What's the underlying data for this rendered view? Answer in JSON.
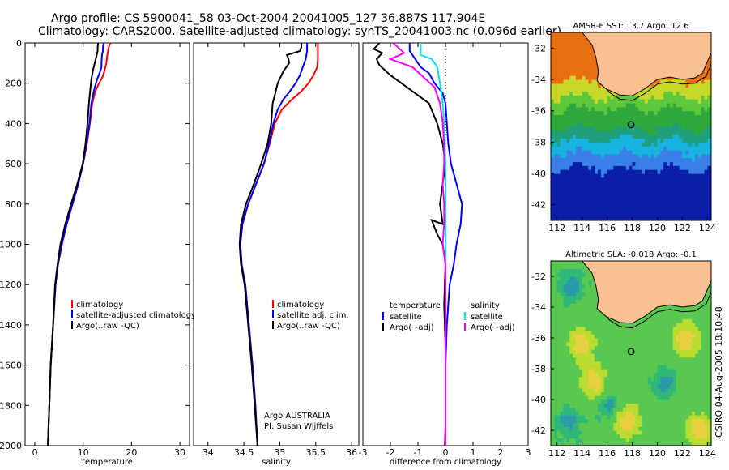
{
  "header": {
    "title_line1": "Argo profile: CS 5900041_58 03-Oct-2004 20041005_127 36.887S 117.904E",
    "title_line2": "Climatology: CARS2000. Satellite-adjusted climatology: synTS_20041003.nc (0.096d earlier)"
  },
  "side_label": "CSIRO 04-Aug-2005 18:10:48",
  "annotations": {
    "argo_agency": "Argo AUSTRALIA",
    "pi": "PI: Susan Wijffels"
  },
  "colors": {
    "climatology": "#ff0000",
    "satellite": "#0000ff",
    "argo": "#000000",
    "salinity_sat": "#00e5ee",
    "salinity_argo": "#ff00ff",
    "land": "#f9c192"
  },
  "chart_data": [
    {
      "type": "line",
      "title": "",
      "xlabel": "temperature",
      "ylabel": "",
      "xlim": [
        -2,
        32
      ],
      "ylim": [
        2000,
        0
      ],
      "xticks": [
        0,
        10,
        20,
        30
      ],
      "yticks": [
        0,
        200,
        400,
        600,
        800,
        1000,
        1200,
        1400,
        1600,
        1800,
        2000
      ],
      "legend": {
        "position": "bottom-right",
        "entries": [
          "climatology",
          "satellite-adjusted climatology",
          "Argo(..raw -QC)"
        ]
      },
      "series": [
        {
          "name": "climatology",
          "color": "#ff0000",
          "points": [
            [
              15.6,
              0
            ],
            [
              15.3,
              20
            ],
            [
              15.0,
              60
            ],
            [
              14.8,
              100
            ],
            [
              14.4,
              140
            ],
            [
              14.0,
              170
            ],
            [
              13.3,
              200
            ],
            [
              12.5,
              240
            ],
            [
              11.9,
              300
            ],
            [
              11.4,
              400
            ],
            [
              10.8,
              500
            ],
            [
              10.0,
              600
            ],
            [
              9.0,
              700
            ],
            [
              7.8,
              800
            ],
            [
              6.6,
              900
            ],
            [
              5.6,
              1000
            ],
            [
              4.8,
              1100
            ],
            [
              4.3,
              1200
            ],
            [
              3.8,
              1400
            ],
            [
              3.3,
              1600
            ],
            [
              3.0,
              1800
            ],
            [
              2.7,
              2000
            ]
          ]
        },
        {
          "name": "satellite",
          "color": "#0000ff",
          "points": [
            [
              14.3,
              0
            ],
            [
              14.1,
              20
            ],
            [
              14.1,
              40
            ],
            [
              13.9,
              60
            ],
            [
              13.8,
              100
            ],
            [
              13.8,
              120
            ],
            [
              13.4,
              150
            ],
            [
              12.9,
              180
            ],
            [
              12.4,
              220
            ],
            [
              12.0,
              260
            ],
            [
              11.7,
              300
            ],
            [
              11.3,
              400
            ],
            [
              10.7,
              500
            ],
            [
              10.0,
              600
            ],
            [
              9.0,
              700
            ],
            [
              7.8,
              800
            ],
            [
              6.6,
              900
            ],
            [
              5.6,
              1000
            ],
            [
              4.8,
              1100
            ],
            [
              4.3,
              1200
            ],
            [
              3.8,
              1400
            ],
            [
              3.3,
              1600
            ],
            [
              3.0,
              1800
            ],
            [
              2.7,
              2000
            ]
          ]
        },
        {
          "name": "Argo",
          "color": "#000000",
          "points": [
            [
              13.1,
              0
            ],
            [
              13.0,
              20
            ],
            [
              13.0,
              40
            ],
            [
              12.8,
              60
            ],
            [
              12.6,
              80
            ],
            [
              12.4,
              100
            ],
            [
              12.0,
              140
            ],
            [
              11.7,
              180
            ],
            [
              11.4,
              250
            ],
            [
              11.2,
              300
            ],
            [
              10.9,
              400
            ],
            [
              10.5,
              500
            ],
            [
              9.9,
              600
            ],
            [
              8.8,
              700
            ],
            [
              7.5,
              800
            ],
            [
              6.3,
              900
            ],
            [
              5.3,
              1000
            ],
            [
              4.7,
              1100
            ],
            [
              4.2,
              1200
            ],
            [
              3.8,
              1400
            ],
            [
              3.3,
              1600
            ],
            [
              3.0,
              1800
            ],
            [
              2.7,
              2000
            ]
          ]
        }
      ]
    },
    {
      "type": "line",
      "title": "",
      "xlabel": "salinity",
      "ylabel": "",
      "xlim": [
        33.8,
        36.1
      ],
      "ylim": [
        2000,
        0
      ],
      "xticks": [
        34,
        34.5,
        35,
        35.5,
        36
      ],
      "yticks": [],
      "legend": {
        "position": "bottom-right",
        "entries": [
          "climatology",
          "satellite adj. clim.",
          "Argo(..raw -QC)"
        ]
      },
      "series": [
        {
          "name": "climatology",
          "color": "#ff0000",
          "points": [
            [
              35.53,
              0
            ],
            [
              35.53,
              80
            ],
            [
              35.52,
              120
            ],
            [
              35.47,
              160
            ],
            [
              35.4,
              200
            ],
            [
              35.3,
              240
            ],
            [
              35.17,
              280
            ],
            [
              35.03,
              330
            ],
            [
              34.93,
              400
            ],
            [
              34.86,
              500
            ],
            [
              34.78,
              600
            ],
            [
              34.67,
              700
            ],
            [
              34.56,
              800
            ],
            [
              34.48,
              900
            ],
            [
              34.45,
              1000
            ],
            [
              34.47,
              1100
            ],
            [
              34.52,
              1200
            ],
            [
              34.57,
              1400
            ],
            [
              34.62,
              1600
            ],
            [
              34.66,
              1800
            ],
            [
              34.69,
              2000
            ]
          ]
        },
        {
          "name": "satellite",
          "color": "#0000ff",
          "points": [
            [
              35.38,
              0
            ],
            [
              35.38,
              40
            ],
            [
              35.36,
              80
            ],
            [
              35.32,
              120
            ],
            [
              35.28,
              160
            ],
            [
              35.22,
              200
            ],
            [
              35.14,
              240
            ],
            [
              35.05,
              280
            ],
            [
              34.97,
              330
            ],
            [
              34.91,
              400
            ],
            [
              34.85,
              500
            ],
            [
              34.78,
              600
            ],
            [
              34.67,
              700
            ],
            [
              34.56,
              800
            ],
            [
              34.48,
              900
            ],
            [
              34.45,
              1000
            ],
            [
              34.47,
              1100
            ],
            [
              34.52,
              1200
            ],
            [
              34.57,
              1400
            ],
            [
              34.62,
              1600
            ],
            [
              34.66,
              1800
            ],
            [
              34.69,
              2000
            ]
          ]
        },
        {
          "name": "Argo",
          "color": "#000000",
          "points": [
            [
              35.3,
              0
            ],
            [
              35.3,
              20
            ],
            [
              35.28,
              40
            ],
            [
              35.1,
              60
            ],
            [
              35.12,
              80
            ],
            [
              35.13,
              100
            ],
            [
              35.05,
              140
            ],
            [
              34.97,
              200
            ],
            [
              34.93,
              260
            ],
            [
              34.9,
              300
            ],
            [
              34.88,
              400
            ],
            [
              34.83,
              500
            ],
            [
              34.74,
              600
            ],
            [
              34.64,
              700
            ],
            [
              34.53,
              800
            ],
            [
              34.46,
              900
            ],
            [
              34.44,
              1000
            ],
            [
              34.46,
              1100
            ],
            [
              34.51,
              1200
            ],
            [
              34.56,
              1400
            ],
            [
              34.61,
              1600
            ],
            [
              34.65,
              1800
            ],
            [
              34.69,
              2000
            ]
          ]
        }
      ]
    },
    {
      "type": "line",
      "title": "",
      "xlabel": "difference from climatology",
      "ylabel": "",
      "xlim": [
        -3,
        3
      ],
      "ylim": [
        2000,
        0
      ],
      "xticks": [
        -3,
        -2,
        -1,
        0,
        1,
        2,
        3
      ],
      "yticks": [],
      "legend": {
        "position": "bottom",
        "left_heading": "temperature",
        "left_entries": [
          "satellite",
          "Argo(~adj)"
        ],
        "right_heading": "salinity",
        "right_entries": [
          "satellite",
          "Argo(~adj)"
        ]
      },
      "series": [
        {
          "name": "temperature satellite",
          "color": "#0000ff",
          "points": [
            [
              -1.3,
              0
            ],
            [
              -1.3,
              40
            ],
            [
              -1.0,
              100
            ],
            [
              -0.9,
              120
            ],
            [
              -0.6,
              150
            ],
            [
              -0.4,
              200
            ],
            [
              -0.1,
              250
            ],
            [
              0,
              300
            ],
            [
              0.05,
              400
            ],
            [
              0.1,
              500
            ],
            [
              0.2,
              600
            ],
            [
              0.4,
              700
            ],
            [
              0.6,
              800
            ],
            [
              0.55,
              900
            ],
            [
              0.4,
              1000
            ],
            [
              0.3,
              1100
            ],
            [
              0.15,
              1200
            ],
            [
              0.05,
              1400
            ],
            [
              0,
              1600
            ],
            [
              0,
              1800
            ],
            [
              0,
              2000
            ]
          ]
        },
        {
          "name": "temperature Argo",
          "color": "#000000",
          "points": [
            [
              -2.4,
              0
            ],
            [
              -2.6,
              30
            ],
            [
              -2.3,
              50
            ],
            [
              -2.5,
              80
            ],
            [
              -2.4,
              110
            ],
            [
              -2.0,
              160
            ],
            [
              -1.6,
              200
            ],
            [
              -0.6,
              300
            ],
            [
              -0.3,
              400
            ],
            [
              -0.1,
              500
            ],
            [
              0,
              600
            ],
            [
              -0.1,
              700
            ],
            [
              -0.2,
              800
            ],
            [
              -0.1,
              900
            ],
            [
              -0.5,
              880
            ],
            [
              -0.3,
              950
            ],
            [
              -0.1,
              1000
            ],
            [
              0,
              1100
            ],
            [
              -0.05,
              1300
            ],
            [
              0,
              1500
            ],
            [
              0,
              1700
            ],
            [
              0,
              1900
            ],
            [
              -0.02,
              2000
            ]
          ]
        },
        {
          "name": "salinity satellite",
          "color": "#00e5ee",
          "points": [
            [
              -0.9,
              0
            ],
            [
              -0.9,
              60
            ],
            [
              -0.5,
              80
            ],
            [
              -0.3,
              120
            ],
            [
              -0.2,
              200
            ],
            [
              -0.1,
              300
            ],
            [
              -0.05,
              400
            ],
            [
              0,
              600
            ],
            [
              0,
              800
            ],
            [
              0,
              1000
            ],
            [
              0,
              1500
            ],
            [
              0,
              2000
            ]
          ]
        },
        {
          "name": "salinity Argo",
          "color": "#ff00ff",
          "points": [
            [
              -1.9,
              0
            ],
            [
              -1.5,
              50
            ],
            [
              -2.0,
              80
            ],
            [
              -1.2,
              120
            ],
            [
              -0.8,
              170
            ],
            [
              -0.4,
              220
            ],
            [
              -0.2,
              300
            ],
            [
              -0.1,
              400
            ],
            [
              -0.05,
              500
            ],
            [
              -0.05,
              600
            ],
            [
              -0.1,
              700
            ],
            [
              -0.05,
              800
            ],
            [
              -0.05,
              900
            ],
            [
              -0.1,
              1000
            ],
            [
              0,
              1100
            ],
            [
              0,
              1300
            ],
            [
              0,
              2000
            ]
          ]
        }
      ]
    },
    {
      "type": "heatmap",
      "title": "AMSR-E SST: 13.7 Argo: 12.6",
      "xlim": [
        111.5,
        124.3
      ],
      "ylim": [
        -43,
        -31
      ],
      "xticks": [
        112,
        114,
        116,
        118,
        120,
        122,
        124
      ],
      "yticks": [
        -32,
        -34,
        -36,
        -38,
        -40,
        -42
      ],
      "profile_location": {
        "lon": 117.904,
        "lat": -36.887
      }
    },
    {
      "type": "heatmap",
      "title": "Altimetric SLA: -0.018 Argo: -0.1",
      "xlim": [
        111.5,
        124.3
      ],
      "ylim": [
        -43,
        -31
      ],
      "xticks": [
        112,
        114,
        116,
        118,
        120,
        122,
        124
      ],
      "yticks": [
        -32,
        -34,
        -36,
        -38,
        -40,
        -42
      ],
      "profile_location": {
        "lon": 117.904,
        "lat": -36.887
      }
    }
  ]
}
